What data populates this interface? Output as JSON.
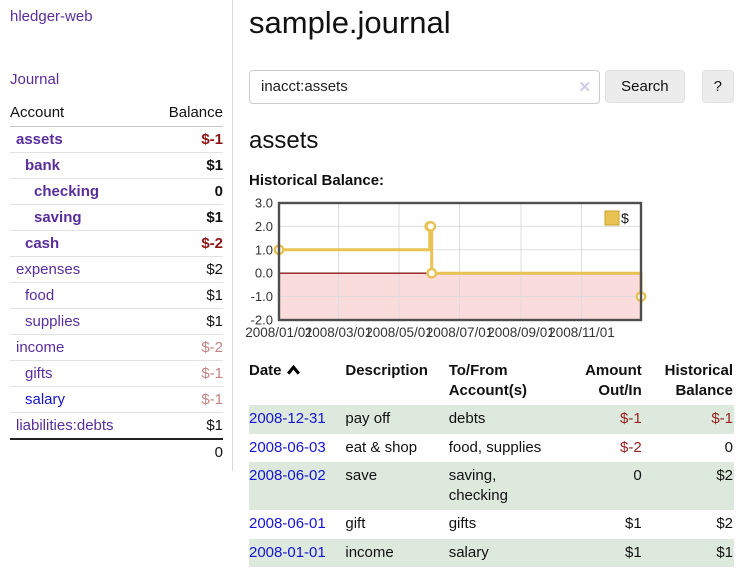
{
  "app": {
    "title": "hledger-web"
  },
  "sidebar": {
    "nav_journal": "Journal",
    "accounts_table": {
      "header_account": "Account",
      "header_balance": "Balance",
      "rows": [
        {
          "name": "assets",
          "depth": 0,
          "bold": true,
          "balance": "$-1",
          "balance_tone": "neg-strong",
          "link_color": "purple"
        },
        {
          "name": "bank",
          "depth": 1,
          "bold": true,
          "balance": "$1",
          "balance_tone": "normal",
          "link_color": "purple"
        },
        {
          "name": "checking",
          "depth": 2,
          "bold": true,
          "balance": "0",
          "balance_tone": "normal",
          "link_color": "purple"
        },
        {
          "name": "saving",
          "depth": 2,
          "bold": true,
          "balance": "$1",
          "balance_tone": "normal",
          "link_color": "purple"
        },
        {
          "name": "cash",
          "depth": 1,
          "bold": true,
          "balance": "$-2",
          "balance_tone": "neg-strong",
          "link_color": "purple"
        },
        {
          "name": "expenses",
          "depth": 0,
          "bold": false,
          "balance": "$2",
          "balance_tone": "normal",
          "link_color": "purple"
        },
        {
          "name": "food",
          "depth": 1,
          "bold": false,
          "balance": "$1",
          "balance_tone": "normal",
          "link_color": "purple"
        },
        {
          "name": "supplies",
          "depth": 1,
          "bold": false,
          "balance": "$1",
          "balance_tone": "normal",
          "link_color": "purple"
        },
        {
          "name": "income",
          "depth": 0,
          "bold": false,
          "balance": "$-2",
          "balance_tone": "neg-muted",
          "link_color": "purple"
        },
        {
          "name": "gifts",
          "depth": 1,
          "bold": false,
          "balance": "$-1",
          "balance_tone": "neg-muted",
          "link_color": "purple"
        },
        {
          "name": "salary",
          "depth": 1,
          "bold": false,
          "balance": "$-1",
          "balance_tone": "neg-muted",
          "link_color": "blue"
        },
        {
          "name": "liabilities:debts",
          "depth": 0,
          "bold": false,
          "balance": "$1",
          "balance_tone": "normal",
          "link_color": "purple"
        }
      ],
      "total": "0"
    }
  },
  "header": {
    "title": "sample.journal"
  },
  "search": {
    "value": "inacct:assets",
    "clear_icon": "✕",
    "button_label": "Search",
    "help_label": "?"
  },
  "account_page": {
    "title": "assets",
    "chart_label": "Historical Balance:"
  },
  "chart_data": {
    "type": "line",
    "style": "step",
    "title": "Historical Balance",
    "x_range": [
      "2008-01-01",
      "2008-12-31"
    ],
    "ylim": [
      -2,
      3
    ],
    "y_ticks": [
      "3.0",
      "2.0",
      "1.0",
      "0.0",
      "-1.0",
      "-2.0"
    ],
    "x_ticks": [
      "2008/01/01",
      "2008/03/01",
      "2008/05/01",
      "2008/07/01",
      "2008/09/01",
      "2008/11/01"
    ],
    "grid": true,
    "legend": {
      "label": "$",
      "position": "top-right"
    },
    "series": [
      {
        "name": "$",
        "color": "#e8c253",
        "points": [
          [
            "2008-01-01",
            1.0
          ],
          [
            "2008-06-01",
            2.0
          ],
          [
            "2008-06-02",
            2.0
          ],
          [
            "2008-06-03",
            0.0
          ],
          [
            "2008-12-31",
            -1.0
          ]
        ]
      }
    ],
    "negative_region_color": "#fbdcdc",
    "zero_line_color": "#8b1a1a",
    "grid_color": "#dddddd",
    "border_color": "#4e4e4e"
  },
  "transactions": {
    "header_labels": {
      "date": "Date",
      "description": "Description",
      "accounts": "To/From Account(s)",
      "amount": "Amount Out/In",
      "balance": "Historical Balance"
    },
    "sort": {
      "column": "date",
      "direction": "asc"
    },
    "rows": [
      {
        "date": "2008-12-31",
        "description": "pay off",
        "accounts": "debts",
        "amount": "$-1",
        "amount_neg": true,
        "balance": "$-1",
        "balance_neg": true,
        "highlight": true
      },
      {
        "date": "2008-06-03",
        "description": "eat & shop",
        "accounts": "food, supplies",
        "amount": "$-2",
        "amount_neg": true,
        "balance": "0",
        "balance_neg": false,
        "highlight": false
      },
      {
        "date": "2008-06-02",
        "description": "save",
        "accounts": "saving, checking",
        "amount": "0",
        "amount_neg": false,
        "balance": "$2",
        "balance_neg": false,
        "highlight": true
      },
      {
        "date": "2008-06-01",
        "description": "gift",
        "accounts": "gifts",
        "amount": "$1",
        "amount_neg": false,
        "balance": "$2",
        "balance_neg": false,
        "highlight": false
      },
      {
        "date": "2008-01-01",
        "description": "income",
        "accounts": "salary",
        "amount": "$1",
        "amount_neg": false,
        "balance": "$1",
        "balance_neg": false,
        "highlight": true
      }
    ]
  },
  "colors": {
    "link_purple": "#5a2d9c",
    "link_blue": "#1414cc",
    "negative_strong": "#8e1414",
    "negative_muted": "#c28383",
    "table_row_green": "#dde9dd",
    "chart_gold": "#e8c253",
    "chart_negative_fill": "#fbdcdc",
    "chart_zero_line": "#8b1a1a"
  }
}
